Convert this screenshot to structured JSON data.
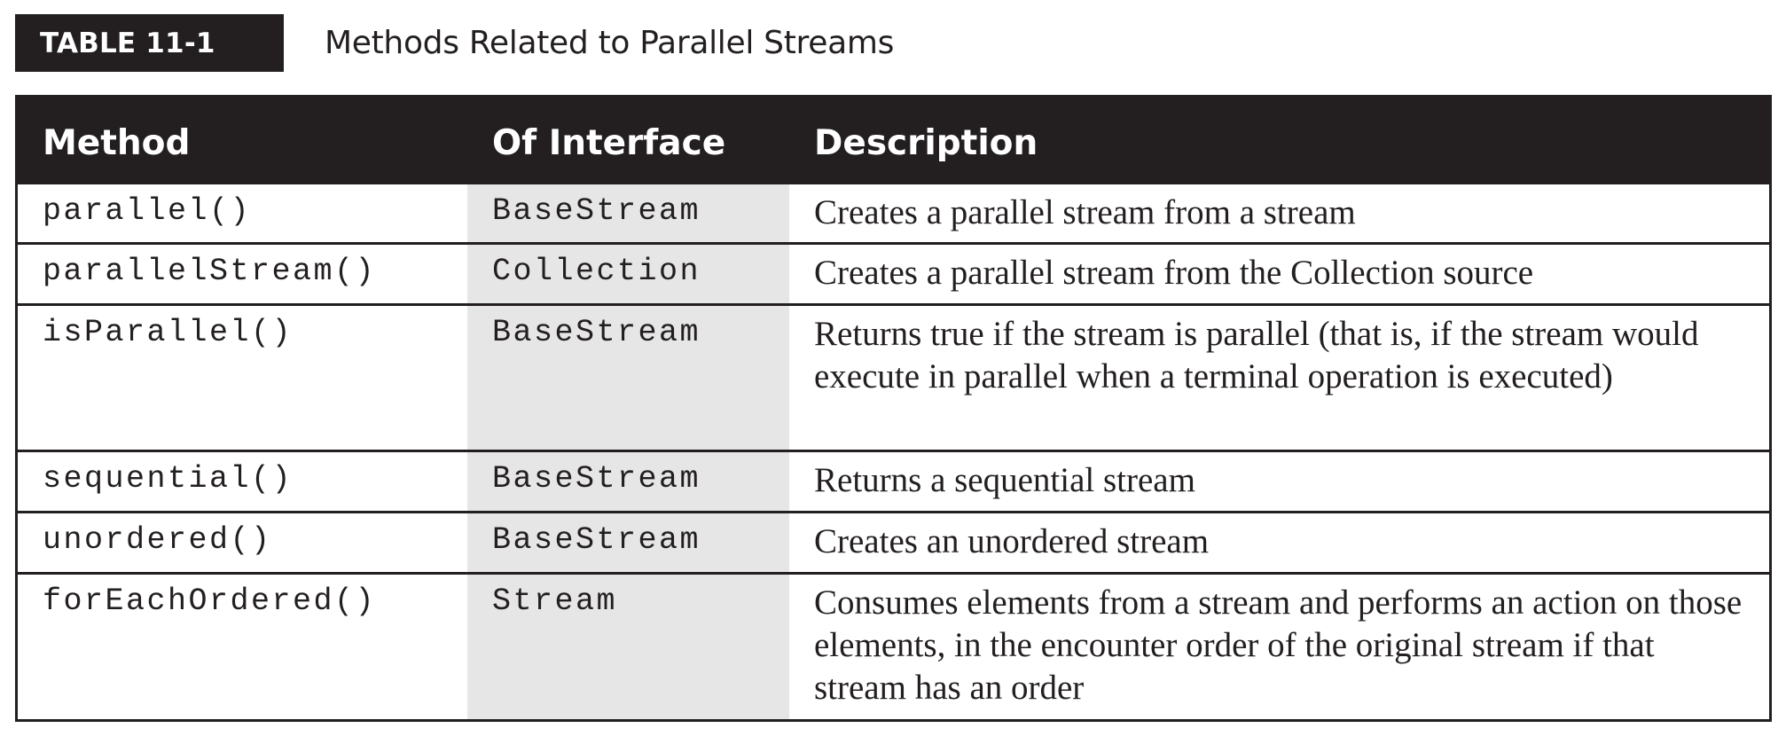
{
  "caption": {
    "tag": "TABLE 11-1",
    "title": "Methods Related to Parallel Streams"
  },
  "table": {
    "headers": {
      "method": "Method",
      "interface": "Of Interface",
      "description": "Description"
    },
    "rows": [
      {
        "method": "parallel()",
        "interface": "BaseStream",
        "description": "Creates a parallel stream from a stream"
      },
      {
        "method": "parallelStream()",
        "interface": "Collection",
        "description": "Creates a parallel stream from the Collection source"
      },
      {
        "method": "isParallel()",
        "interface": "BaseStream",
        "description": "Returns true if the stream is parallel (that is, if the stream would execute in parallel when a terminal operation is executed)"
      },
      {
        "method": "sequential()",
        "interface": "BaseStream",
        "description": "Returns a sequential stream"
      },
      {
        "method": "unordered()",
        "interface": "BaseStream",
        "description": "Creates an unordered stream"
      },
      {
        "method": "forEachOrdered()",
        "interface": "Stream",
        "description": "Consumes elements from a stream and performs an action on those elements, in the encounter order of the original stream if that stream has an order"
      }
    ]
  },
  "colors": {
    "header_bg": "#231f20",
    "header_text": "#ffffff",
    "interface_column_bg": "#e6e6e6",
    "border": "#231f20"
  }
}
